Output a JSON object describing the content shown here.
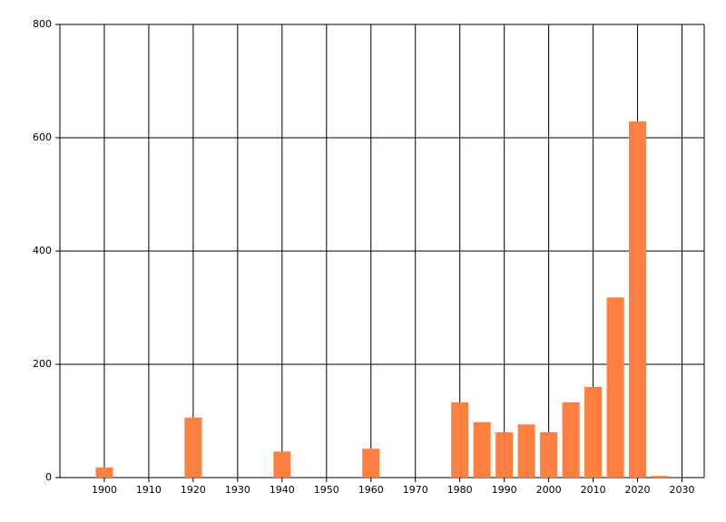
{
  "chart_data": {
    "type": "bar",
    "x": [
      1900,
      1920,
      1940,
      1960,
      1980,
      1985,
      1990,
      1995,
      2000,
      2005,
      2010,
      2015,
      2020,
      2025
    ],
    "values": [
      18,
      106,
      46,
      51,
      133,
      98,
      80,
      94,
      80,
      133,
      160,
      318,
      629,
      3
    ],
    "color": "#ff8040",
    "xlim": [
      1890,
      2035
    ],
    "xticks": [
      1900,
      1910,
      1920,
      1930,
      1940,
      1950,
      1960,
      1970,
      1980,
      1990,
      2000,
      2010,
      2020,
      2030
    ],
    "ylim": [
      0,
      800
    ],
    "yticks": [
      0,
      200,
      400,
      600,
      800
    ],
    "grid": true
  }
}
